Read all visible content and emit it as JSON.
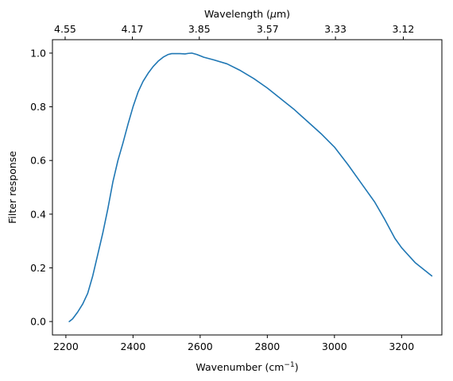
{
  "chart_data": {
    "type": "line",
    "xlabel": "Wavenumber (cm",
    "xlabel_sup": "−1",
    "xlabel_end": ")",
    "ylabel": "Filter response",
    "top_xlabel": "Wavelength (",
    "top_xlabel_mu": "μ",
    "top_xlabel_end": "m)",
    "xlim": [
      2160,
      3320
    ],
    "ylim": [
      -0.05,
      1.05
    ],
    "x_ticks": [
      2200,
      2400,
      2600,
      2800,
      3000,
      3200
    ],
    "y_ticks": [
      0.0,
      0.2,
      0.4,
      0.6,
      0.8,
      1.0
    ],
    "y_tick_labels": [
      "0.0",
      "0.2",
      "0.4",
      "0.6",
      "0.8",
      "1.0"
    ],
    "top_ticks": [
      {
        "wavenumber": 2197.8,
        "label": "4.55"
      },
      {
        "wavenumber": 2398.1,
        "label": "4.17"
      },
      {
        "wavenumber": 2597.4,
        "label": "3.85"
      },
      {
        "wavenumber": 2801.1,
        "label": "3.57"
      },
      {
        "wavenumber": 3003.0,
        "label": "3.33"
      },
      {
        "wavenumber": 3205.1,
        "label": "3.12"
      }
    ],
    "grid": false,
    "color": "#1f77b4",
    "series": [
      {
        "x": [
          2210,
          2220,
          2235,
          2250,
          2265,
          2280,
          2295,
          2310,
          2325,
          2340,
          2355,
          2370,
          2385,
          2400,
          2415,
          2430,
          2445,
          2460,
          2475,
          2490,
          2505,
          2515,
          2525,
          2540,
          2555,
          2565,
          2575,
          2590,
          2610,
          2640,
          2680,
          2720,
          2760,
          2800,
          2840,
          2880,
          2920,
          2960,
          3000,
          3040,
          3080,
          3120,
          3150,
          3180,
          3200,
          3240,
          3270,
          3290
        ],
        "y": [
          0.0,
          0.01,
          0.035,
          0.065,
          0.105,
          0.17,
          0.25,
          0.33,
          0.42,
          0.52,
          0.6,
          0.665,
          0.735,
          0.8,
          0.855,
          0.895,
          0.925,
          0.95,
          0.97,
          0.985,
          0.995,
          0.998,
          0.998,
          0.998,
          0.997,
          0.999,
          1.0,
          0.995,
          0.985,
          0.975,
          0.96,
          0.935,
          0.905,
          0.87,
          0.83,
          0.79,
          0.745,
          0.7,
          0.65,
          0.585,
          0.515,
          0.445,
          0.38,
          0.31,
          0.275,
          0.22,
          0.19,
          0.17
        ]
      }
    ]
  }
}
